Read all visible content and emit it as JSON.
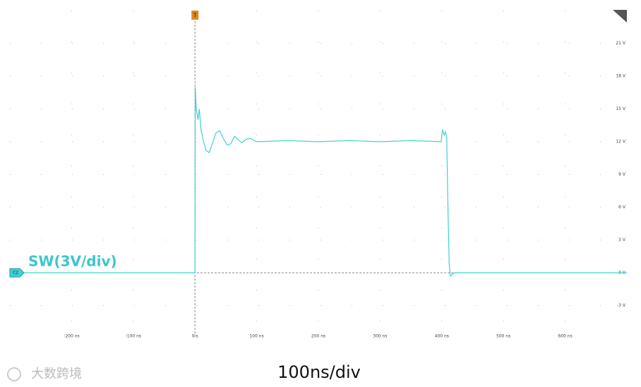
{
  "chart_data": {
    "type": "line",
    "annotation": "SW(3V/div)",
    "caption": "100ns/div",
    "channel_label": "C2",
    "trigger_label": "T",
    "watermark": "大数跨境",
    "x": [
      -300,
      0,
      0.5,
      2,
      5,
      7,
      10,
      14,
      18,
      23,
      28,
      34,
      40,
      46,
      52,
      58,
      64,
      70,
      76,
      82,
      90,
      100,
      150,
      200,
      250,
      300,
      350,
      399,
      401,
      404,
      406,
      408,
      410,
      412,
      414,
      420,
      500,
      600,
      700
    ],
    "series": [
      {
        "name": "C2",
        "color": "#3fd0d6",
        "values": [
          0,
          0,
          17,
          15,
          14,
          15,
          13,
          12,
          11.2,
          11,
          11.8,
          12.8,
          13,
          12.3,
          11.7,
          11.8,
          12.5,
          12.2,
          11.9,
          12.2,
          12.3,
          12,
          12.1,
          12,
          12.1,
          12,
          12.1,
          12,
          13.1,
          12.6,
          12.9,
          12.4,
          6,
          0.8,
          -0.3,
          0,
          0,
          0,
          0
        ]
      }
    ],
    "xlim": [
      -300,
      700
    ],
    "ylim": [
      -6,
      24
    ],
    "xticks": [
      {
        "value": -200,
        "label": "-200 ns"
      },
      {
        "value": -100,
        "label": "-100 ns"
      },
      {
        "value": 0,
        "label": "0 s"
      },
      {
        "value": 100,
        "label": "100 ns"
      },
      {
        "value": 200,
        "label": "200 ns"
      },
      {
        "value": 300,
        "label": "300 ns"
      },
      {
        "value": 400,
        "label": "400 ns"
      },
      {
        "value": 500,
        "label": "500 ns"
      },
      {
        "value": 600,
        "label": "600 ns"
      }
    ],
    "yticks": [
      {
        "value": -3,
        "label": "-3 V"
      },
      {
        "value": 0,
        "label": "0 V"
      },
      {
        "value": 3,
        "label": "3 V"
      },
      {
        "value": 6,
        "label": "6 V"
      },
      {
        "value": 9,
        "label": "9 V"
      },
      {
        "value": 12,
        "label": "12 V"
      },
      {
        "value": 15,
        "label": "15 V"
      },
      {
        "value": 18,
        "label": "18 V"
      },
      {
        "value": 21,
        "label": "21 V"
      }
    ],
    "grid": true
  }
}
